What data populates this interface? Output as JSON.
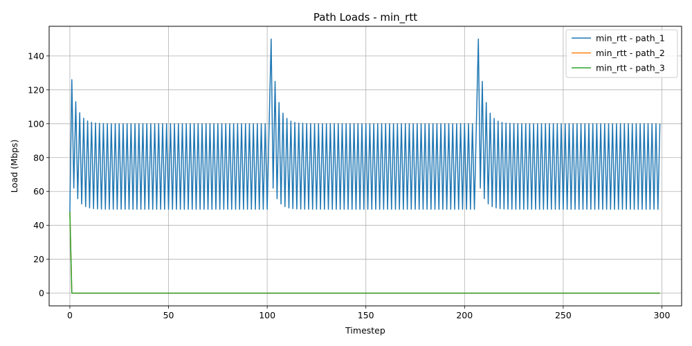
{
  "chart_data": {
    "type": "line",
    "title": "Path Loads - min_rtt",
    "xlabel": "Timestep",
    "ylabel": "Load (Mbps)",
    "xlim": [
      -10.5,
      310
    ],
    "ylim": [
      -7.5,
      157.5
    ],
    "xticks": [
      0,
      50,
      100,
      150,
      200,
      250,
      300
    ],
    "yticks": [
      0,
      20,
      40,
      60,
      80,
      100,
      120,
      140
    ],
    "grid": true,
    "legend_position": "top-right",
    "n_timesteps": 300,
    "series": [
      {
        "name": "min_rtt - path_1",
        "color": "#1f77b4",
        "start_value": 48,
        "spike_timesteps": [
          1,
          102,
          207
        ],
        "spike_peaks": [
          126,
          150,
          150
        ],
        "oscillation_high": 100,
        "oscillation_low": 49.5,
        "description_of_pattern": "alternates between ~100 and ~49.5 each timestep; after each spike the peaks decay from the spike value toward 100 and troughs rise from ~62 toward 49.5"
      },
      {
        "name": "min_rtt - path_2",
        "color": "#ff7f0e",
        "start_value": 48,
        "steady_value": 0
      },
      {
        "name": "min_rtt - path_3",
        "color": "#2ca02c",
        "start_value": 48,
        "steady_value": 0
      }
    ]
  }
}
